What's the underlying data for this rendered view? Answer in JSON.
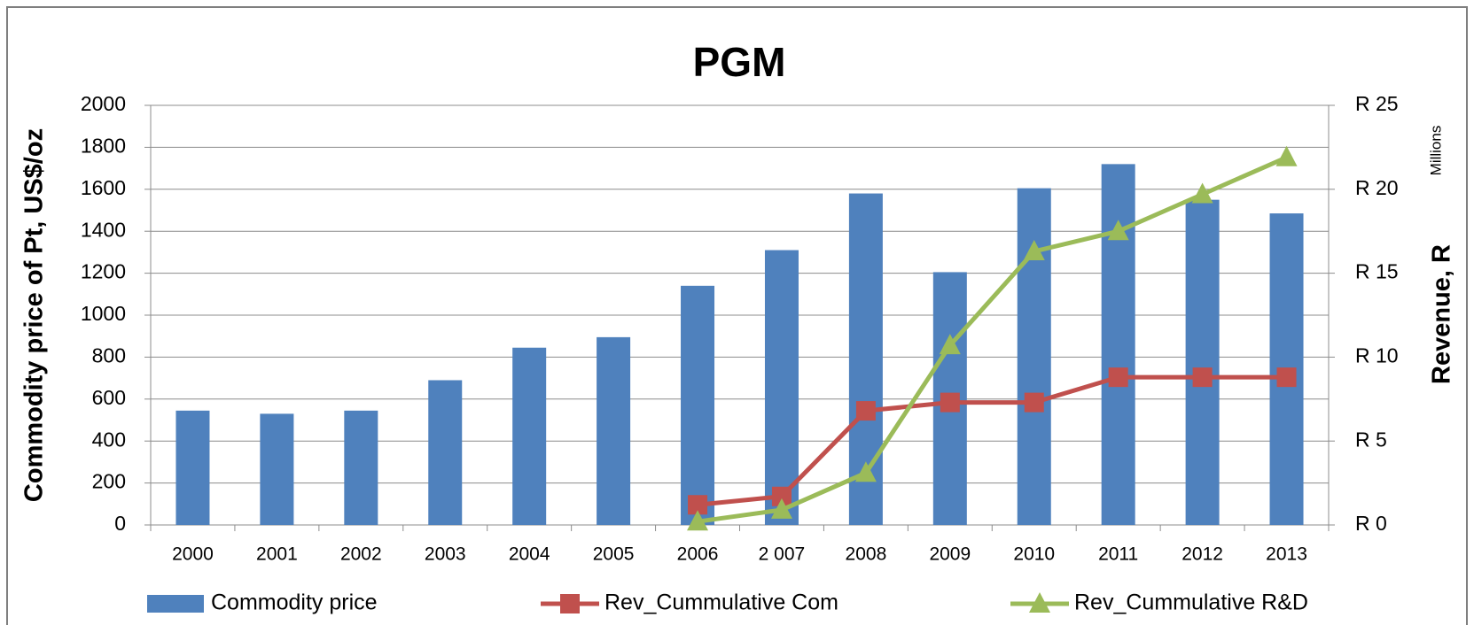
{
  "chart_data": {
    "type": "bar_line",
    "title": "PGM",
    "y_label": "Commodity price of Pt, US$/oz",
    "y2_label": "Revenue, R",
    "y2_unit": "Millions",
    "categories": [
      "2000",
      "2001",
      "2002",
      "2003",
      "2004",
      "2005",
      "2006",
      "2 007",
      "2008",
      "2009",
      "2010",
      "2011",
      "2012",
      "2013"
    ],
    "series": [
      {
        "name": "Commodity price",
        "type": "bar",
        "color": "#4f81bd",
        "axis": "y",
        "values": [
          545,
          530,
          545,
          690,
          845,
          895,
          1140,
          1310,
          1580,
          1205,
          1605,
          1720,
          1550,
          1485
        ]
      },
      {
        "name": "Rev_Cummulative Com",
        "type": "line",
        "marker": "square",
        "color": "#c0504d",
        "axis": "y2",
        "values": [
          null,
          null,
          null,
          null,
          null,
          null,
          1.2,
          1.7,
          6.8,
          7.3,
          7.3,
          8.8,
          8.8,
          8.8
        ]
      },
      {
        "name": "Rev_Cummulative R&D",
        "type": "line",
        "marker": "triangle",
        "color": "#9bbb59",
        "axis": "y2",
        "values": [
          null,
          null,
          null,
          null,
          null,
          null,
          0.2,
          0.9,
          3.1,
          10.7,
          16.3,
          17.5,
          19.7,
          21.9
        ]
      }
    ],
    "ylim": [
      0,
      2000
    ],
    "yticks": [
      0,
      200,
      400,
      600,
      800,
      1000,
      1200,
      1400,
      1600,
      1800,
      2000
    ],
    "y2lim": [
      0,
      25
    ],
    "y2ticks": [
      {
        "value": 0,
        "label": "R 0"
      },
      {
        "value": 5,
        "label": "R 5"
      },
      {
        "value": 10,
        "label": "R 10"
      },
      {
        "value": 15,
        "label": "R 15"
      },
      {
        "value": 20,
        "label": "R 20"
      },
      {
        "value": 25,
        "label": "R 25"
      }
    ],
    "grid": true,
    "legend": "bottom"
  }
}
